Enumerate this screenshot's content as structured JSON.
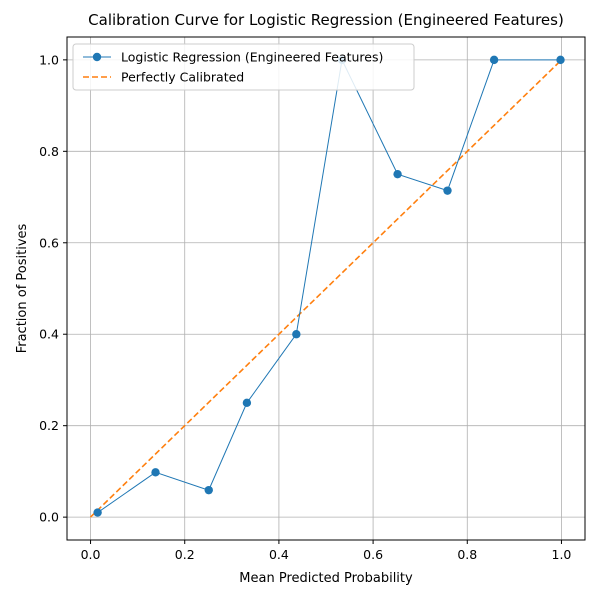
{
  "chart_data": {
    "type": "line",
    "title": "Calibration Curve for Logistic Regression (Engineered Features)",
    "xlabel": "Mean Predicted Probability",
    "ylabel": "Fraction of Positives",
    "xlim": [
      -0.05,
      1.05
    ],
    "ylim": [
      -0.05,
      1.05
    ],
    "xticks": [
      0.0,
      0.2,
      0.4,
      0.6,
      0.8,
      1.0
    ],
    "yticks": [
      0.0,
      0.2,
      0.4,
      0.6,
      0.8,
      1.0
    ],
    "xtick_labels": [
      "0.0",
      "0.2",
      "0.4",
      "0.6",
      "0.8",
      "1.0"
    ],
    "ytick_labels": [
      "0.0",
      "0.2",
      "0.4",
      "0.6",
      "0.8",
      "1.0"
    ],
    "grid": true,
    "legend_position": "top-left",
    "series": [
      {
        "name": "Logistic Regression (Engineered Features)",
        "style": "line-marker",
        "color": "#1f77b4",
        "x": [
          0.015,
          0.138,
          0.251,
          0.332,
          0.437,
          0.534,
          0.652,
          0.758,
          0.857,
          0.998
        ],
        "y": [
          0.01,
          0.098,
          0.059,
          0.25,
          0.4,
          1.0,
          0.75,
          0.714,
          1.0,
          1.0
        ]
      },
      {
        "name": "Perfectly Calibrated",
        "style": "dashed",
        "color": "#ff7f0e",
        "x": [
          0.0,
          1.0
        ],
        "y": [
          0.0,
          1.0
        ]
      }
    ]
  }
}
